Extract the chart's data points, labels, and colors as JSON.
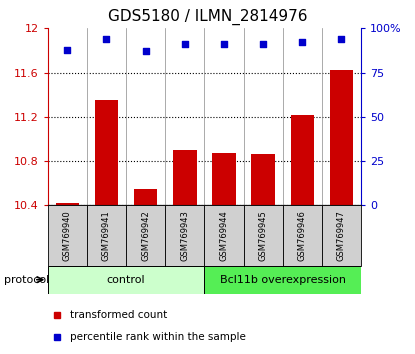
{
  "title": "GDS5180 / ILMN_2814976",
  "samples": [
    "GSM769940",
    "GSM769941",
    "GSM769942",
    "GSM769943",
    "GSM769944",
    "GSM769945",
    "GSM769946",
    "GSM769947"
  ],
  "transformed_counts": [
    10.42,
    11.35,
    10.55,
    10.9,
    10.87,
    10.86,
    11.22,
    11.62
  ],
  "percentile_ranks": [
    88,
    94,
    87,
    91,
    91,
    91,
    92,
    94
  ],
  "ylim_left": [
    10.4,
    12.0
  ],
  "ylim_right": [
    0,
    100
  ],
  "yticks_left": [
    10.4,
    10.8,
    11.2,
    11.6,
    12.0
  ],
  "yticks_left_labels": [
    "10.4",
    "10.8",
    "11.2",
    "11.6",
    "12"
  ],
  "yticks_right": [
    0,
    25,
    50,
    75,
    100
  ],
  "yticks_right_labels": [
    "0",
    "25",
    "50",
    "75",
    "100%"
  ],
  "bar_color": "#cc0000",
  "dot_color": "#0000cc",
  "control_label": "control",
  "treatment_label": "Bcl11b overexpression",
  "protocol_label": "protocol",
  "legend_bar_label": "transformed count",
  "legend_dot_label": "percentile rank within the sample",
  "control_bg": "#ccffcc",
  "treatment_bg": "#55ee55",
  "sample_bg": "#d0d0d0",
  "title_fontsize": 11,
  "tick_fontsize": 8,
  "sample_fontsize": 6,
  "label_fontsize": 8,
  "legend_fontsize": 7.5
}
